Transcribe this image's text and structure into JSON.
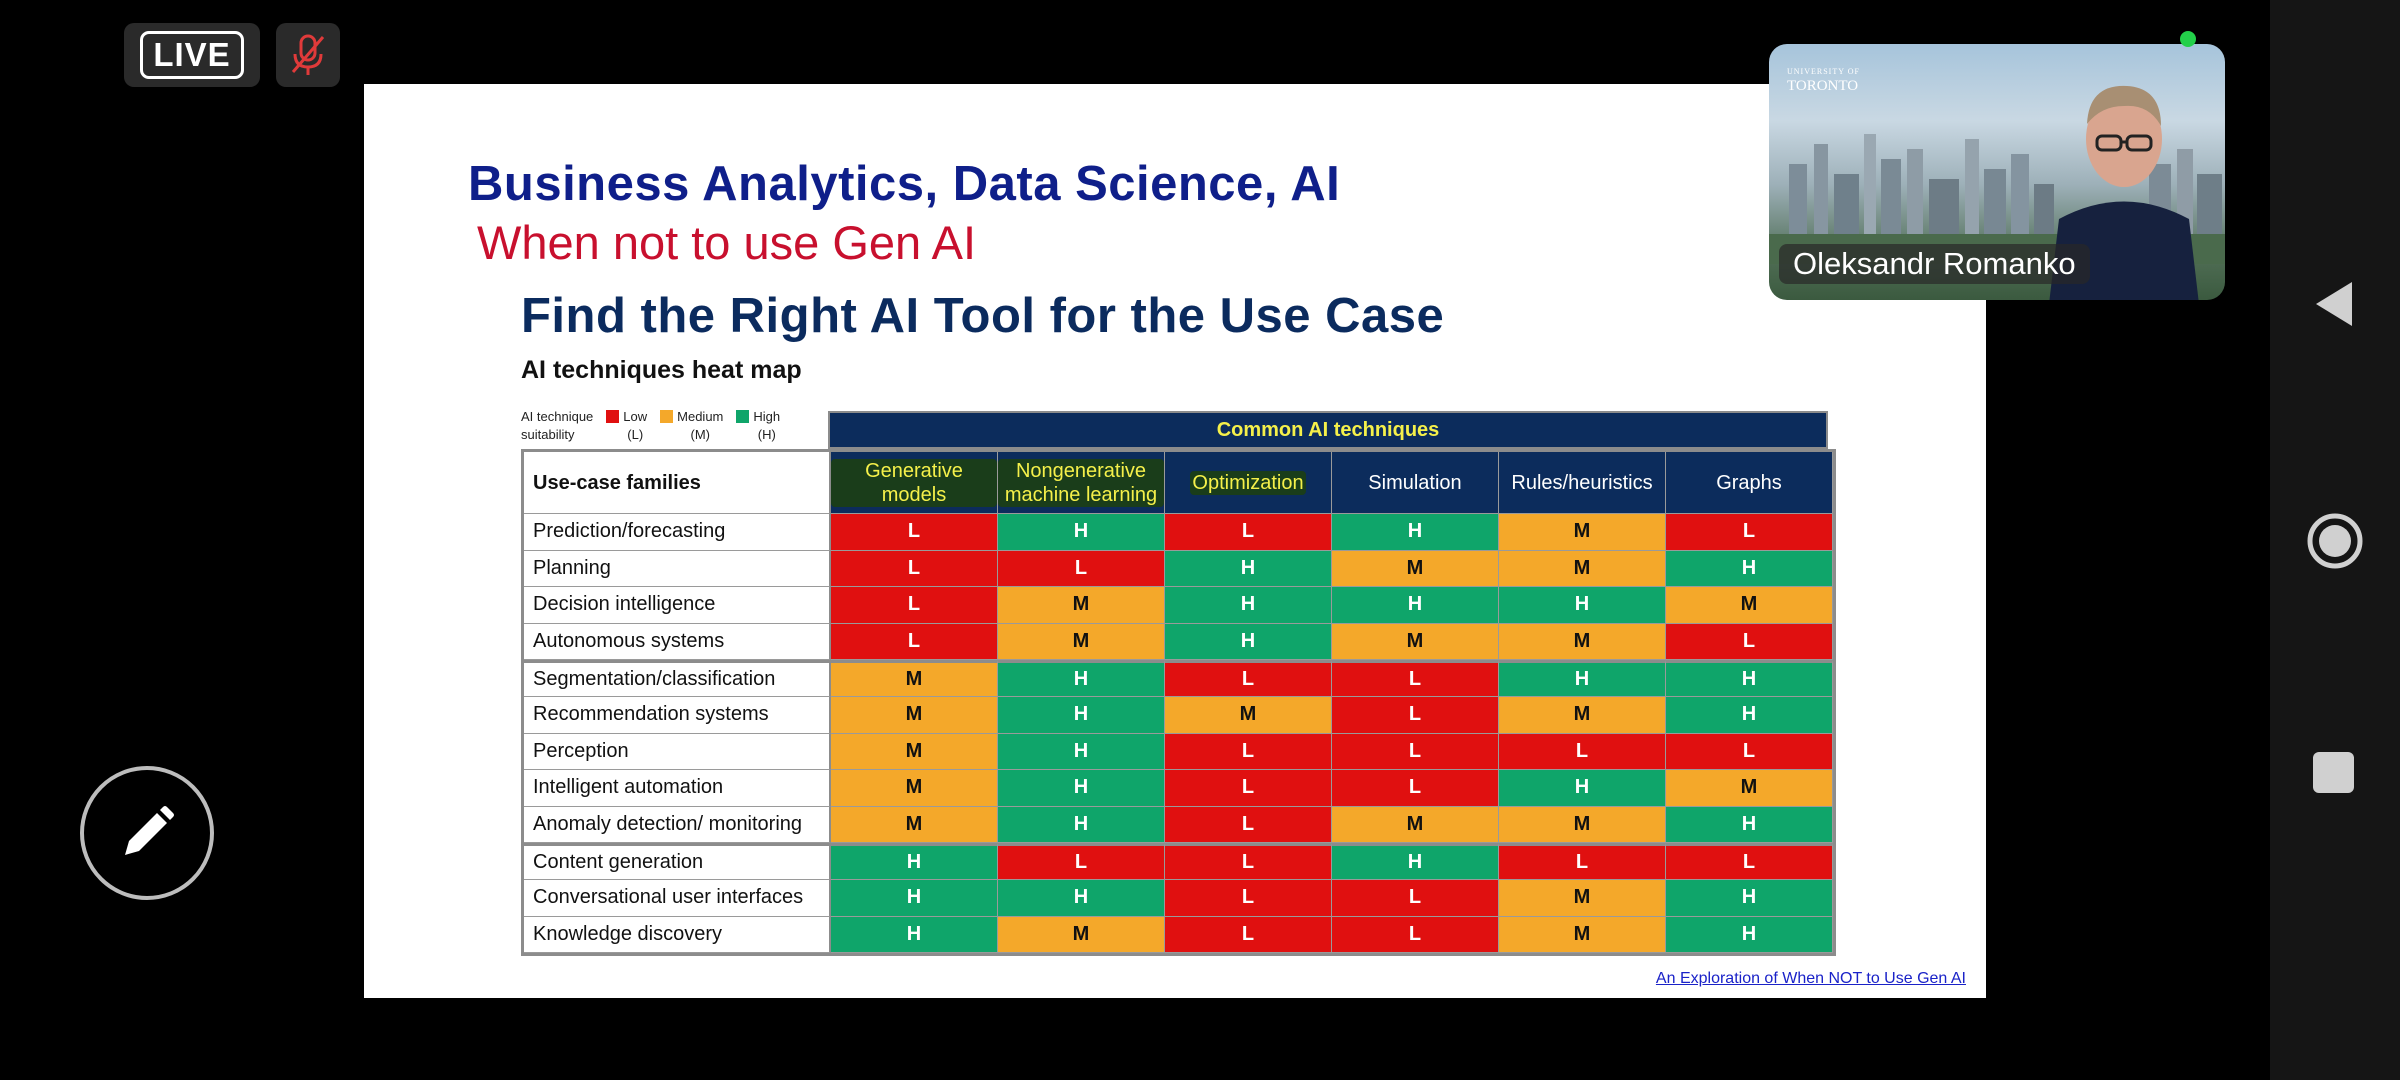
{
  "status": {
    "live_label": "LIVE",
    "mic_state": "muted"
  },
  "slide": {
    "title": "Business Analytics, Data Science, AI",
    "subtitle": "When not to use Gen AI",
    "heading": "Find the Right AI Tool for the Use Case",
    "section_title": "AI techniques heat map",
    "legend": {
      "caption_line1": "AI technique",
      "caption_line2": "suitability",
      "low": {
        "label": "Low",
        "abbr": "(L)",
        "color": "#e01010"
      },
      "medium": {
        "label": "Medium",
        "abbr": "(M)",
        "color": "#f4a82a"
      },
      "high": {
        "label": "High",
        "abbr": "(H)",
        "color": "#0fa56a"
      }
    },
    "table": {
      "band_header": "Common AI techniques",
      "row_header": "Use-case families",
      "columns": [
        "Generative models",
        "Nongenerative machine learning",
        "Optimization",
        "Simulation",
        "Rules/heuristics",
        "Graphs"
      ],
      "rows": [
        {
          "label": "Prediction/forecasting",
          "values": [
            "L",
            "H",
            "L",
            "H",
            "M",
            "L"
          ]
        },
        {
          "label": "Planning",
          "values": [
            "L",
            "L",
            "H",
            "M",
            "M",
            "H"
          ]
        },
        {
          "label": "Decision intelligence",
          "values": [
            "L",
            "M",
            "H",
            "H",
            "H",
            "M"
          ]
        },
        {
          "label": "Autonomous systems",
          "values": [
            "L",
            "M",
            "H",
            "M",
            "M",
            "L"
          ]
        },
        {
          "label": "Segmentation/classification",
          "values": [
            "M",
            "H",
            "L",
            "L",
            "H",
            "H"
          ]
        },
        {
          "label": "Recommendation systems",
          "values": [
            "M",
            "H",
            "M",
            "L",
            "M",
            "H"
          ]
        },
        {
          "label": "Perception",
          "values": [
            "M",
            "H",
            "L",
            "L",
            "L",
            "L"
          ]
        },
        {
          "label": "Intelligent automation",
          "values": [
            "M",
            "H",
            "L",
            "L",
            "H",
            "M"
          ]
        },
        {
          "label": "Anomaly detection/ monitoring",
          "values": [
            "M",
            "H",
            "L",
            "M",
            "M",
            "H"
          ]
        },
        {
          "label": "Content generation",
          "values": [
            "H",
            "L",
            "L",
            "H",
            "L",
            "L"
          ]
        },
        {
          "label": "Conversational user interfaces",
          "values": [
            "H",
            "H",
            "L",
            "L",
            "M",
            "H"
          ]
        },
        {
          "label": "Knowledge discovery",
          "values": [
            "H",
            "M",
            "L",
            "L",
            "M",
            "H"
          ]
        }
      ],
      "group_starts": [
        4,
        9
      ]
    },
    "source_link": "An Exploration of When NOT to Use Gen AI"
  },
  "video": {
    "participant_name": "Oleksandr Romanko",
    "logo_line1": "UNIVERSITY OF",
    "logo_line2": "TORONTO"
  },
  "nav": {
    "back": "back-icon",
    "home": "home-icon",
    "recents": "recents-icon"
  }
}
